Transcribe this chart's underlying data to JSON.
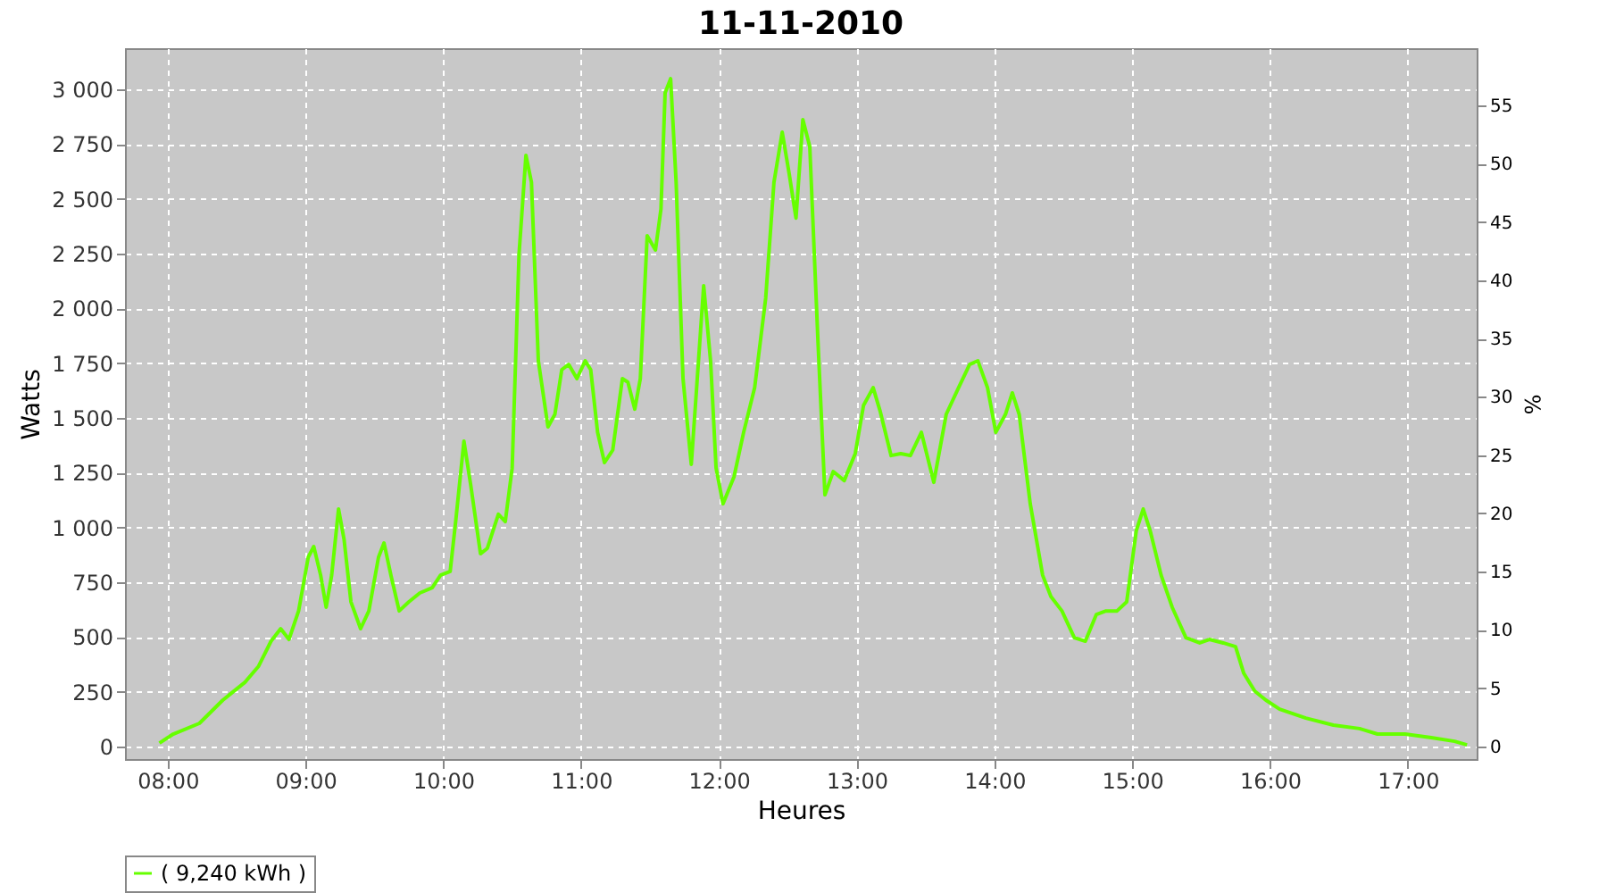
{
  "chart_data": {
    "type": "line",
    "title": "11-11-2010",
    "xlabel": "Heures",
    "ylabel": "Watts",
    "y2label": "%",
    "xlim": [
      7.69,
      17.5
    ],
    "xticks": [
      {
        "value": 8,
        "label": "08:00"
      },
      {
        "value": 9,
        "label": "09:00"
      },
      {
        "value": 10,
        "label": "10:00"
      },
      {
        "value": 11,
        "label": "11:00"
      },
      {
        "value": 12,
        "label": "12:00"
      },
      {
        "value": 13,
        "label": "13:00"
      },
      {
        "value": 14,
        "label": "14:00"
      },
      {
        "value": 15,
        "label": "15:00"
      },
      {
        "value": 16,
        "label": "16:00"
      },
      {
        "value": 17,
        "label": "17:00"
      }
    ],
    "ylim": [
      -57,
      3187
    ],
    "yticks": [
      0,
      250,
      500,
      750,
      {
        "value": 1000,
        "label": "1 000"
      },
      {
        "value": 1250,
        "label": "1 250"
      },
      {
        "value": 1500,
        "label": "1 500"
      },
      {
        "value": 1750,
        "label": "1 750"
      },
      {
        "value": 2000,
        "label": "2 000"
      },
      {
        "value": 2250,
        "label": "2 250"
      },
      {
        "value": 2500,
        "label": "2 500"
      },
      {
        "value": 2750,
        "label": "2 750"
      },
      {
        "value": 3000,
        "label": "3 000"
      }
    ],
    "y2lim": [
      -1.07,
      59.9
    ],
    "y2ticks": [
      0,
      5,
      10,
      15,
      20,
      25,
      30,
      35,
      40,
      45,
      50,
      55
    ],
    "grid": true,
    "legend": "bottom",
    "marker": "none",
    "line_style": "solid",
    "x": [
      7.94,
      8.04,
      8.23,
      8.4,
      8.56,
      8.66,
      8.75,
      8.82,
      8.88,
      8.95,
      9.02,
      9.06,
      9.11,
      9.15,
      9.19,
      9.24,
      9.28,
      9.33,
      9.4,
      9.46,
      9.53,
      9.57,
      9.62,
      9.68,
      9.75,
      9.83,
      9.92,
      9.98,
      10.05,
      10.09,
      10.15,
      10.2,
      10.27,
      10.32,
      10.4,
      10.45,
      10.5,
      10.55,
      10.6,
      10.64,
      10.69,
      10.76,
      10.81,
      10.86,
      10.91,
      10.97,
      11.03,
      11.07,
      11.12,
      11.17,
      11.23,
      11.3,
      11.34,
      11.39,
      11.43,
      11.48,
      11.54,
      11.58,
      11.61,
      11.65,
      11.69,
      11.74,
      11.8,
      11.83,
      11.89,
      11.94,
      11.98,
      12.03,
      12.11,
      12.18,
      12.26,
      12.34,
      12.4,
      12.46,
      12.51,
      12.56,
      12.61,
      12.66,
      12.72,
      12.77,
      12.83,
      12.91,
      12.99,
      13.05,
      13.12,
      13.17,
      13.25,
      13.32,
      13.39,
      13.47,
      13.56,
      13.65,
      13.74,
      13.82,
      13.88,
      13.95,
      14.01,
      14.08,
      14.13,
      14.18,
      14.26,
      14.35,
      14.41,
      14.49,
      14.58,
      14.66,
      14.74,
      14.81,
      14.89,
      14.96,
      15.03,
      15.08,
      15.13,
      15.21,
      15.29,
      15.39,
      15.49,
      15.56,
      15.66,
      15.75,
      15.81,
      15.89,
      15.97,
      16.07,
      16.26,
      16.46,
      16.65,
      16.78,
      16.98,
      17.17,
      17.34,
      17.43
    ],
    "series": [
      {
        "name": "( 9,240 kWh )",
        "color": "#66ff00",
        "values": [
          16,
          57,
          106,
          212,
          293,
          367,
          481,
          538,
          489,
          619,
          864,
          913,
          782,
          636,
          782,
          1084,
          945,
          660,
          538,
          619,
          864,
          929,
          782,
          619,
          660,
          701,
          725,
          782,
          799,
          1027,
          1394,
          1190,
          880,
          905,
          1060,
          1027,
          1271,
          2249,
          2698,
          2575,
          1760,
          1459,
          1516,
          1720,
          1744,
          1679,
          1760,
          1720,
          1434,
          1296,
          1353,
          1679,
          1663,
          1540,
          1679,
          2331,
          2266,
          2453,
          2983,
          3048,
          2575,
          1679,
          1288,
          1557,
          2103,
          1760,
          1271,
          1108,
          1231,
          1434,
          1638,
          2046,
          2575,
          2804,
          2616,
          2412,
          2861,
          2738,
          1842,
          1149,
          1255,
          1214,
          1337,
          1557,
          1638,
          1532,
          1328,
          1337,
          1328,
          1434,
          1206,
          1516,
          1638,
          1744,
          1760,
          1638,
          1434,
          1516,
          1614,
          1516,
          1108,
          782,
          685,
          619,
          497,
          481,
          603,
          619,
          619,
          660,
          986,
          1084,
          986,
          782,
          636,
          497,
          473,
          489,
          473,
          456,
          334,
          253,
          212,
          171,
          130,
          98,
          82,
          57,
          57,
          41,
          24,
          8
        ]
      }
    ]
  }
}
